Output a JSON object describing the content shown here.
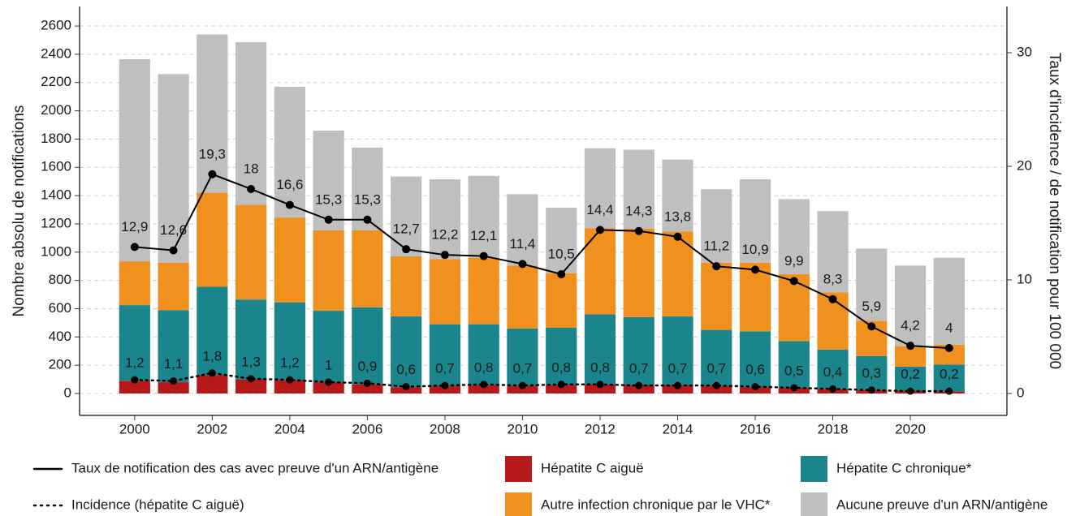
{
  "chart_data": {
    "type": "bar",
    "stacked": true,
    "ylabel": "Nombre absolu de notifications",
    "y2label": "Taux d'incidence / de notification pour 100 000",
    "x": [
      2000,
      2001,
      2002,
      2003,
      2004,
      2005,
      2006,
      2007,
      2008,
      2009,
      2010,
      2011,
      2012,
      2013,
      2014,
      2015,
      2016,
      2017,
      2018,
      2019,
      2020,
      2021
    ],
    "xlim": [
      1998.58,
      2022.49
    ],
    "xticks": [
      2000,
      2002,
      2004,
      2006,
      2008,
      2010,
      2012,
      2014,
      2016,
      2018,
      2020
    ],
    "ylim": [
      -155,
      2738
    ],
    "yticks": [
      0,
      200,
      400,
      600,
      800,
      1000,
      1200,
      1400,
      1600,
      1800,
      2000,
      2200,
      2400,
      2600
    ],
    "y2lim": [
      -1.93,
      34.07
    ],
    "y2ticks": [
      0,
      10,
      20,
      30
    ],
    "grid": true,
    "legend": "bottom",
    "series": [
      {
        "name": "Taux de notification des cas avec preuve d'un ARN/antigène",
        "type": "line",
        "linestyle": "solid",
        "color": "#000000",
        "axis": "y2",
        "values": [
          12.9,
          12.6,
          19.3,
          18,
          16.6,
          15.3,
          15.3,
          12.7,
          12.2,
          12.1,
          11.4,
          10.5,
          14.4,
          14.3,
          13.8,
          11.2,
          10.9,
          9.9,
          8.3,
          5.9,
          4.2,
          4
        ],
        "value_labels": [
          "12,9",
          "12,6",
          "19,3",
          "18",
          "16,6",
          "15,3",
          "15,3",
          "12,7",
          "12,2",
          "12,1",
          "11,4",
          "10,5",
          "14,4",
          "14,3",
          "13,8",
          "11,2",
          "10,9",
          "9,9",
          "8,3",
          "5,9",
          "4,2",
          "4"
        ]
      },
      {
        "name": "Hépatite C aiguë",
        "type": "bar",
        "color": "#b5191a",
        "values": [
          90,
          80,
          130,
          100,
          95,
          80,
          65,
          45,
          55,
          60,
          55,
          60,
          65,
          60,
          60,
          55,
          45,
          40,
          30,
          25,
          20,
          15
        ]
      },
      {
        "name": "Hépatite C chronique*",
        "type": "bar",
        "color": "#1a858d",
        "values": [
          535,
          510,
          625,
          565,
          550,
          505,
          545,
          500,
          435,
          430,
          405,
          405,
          495,
          480,
          485,
          395,
          395,
          330,
          280,
          240,
          170,
          190
        ]
      },
      {
        "name": "Incidence (hépatite C aiguë)",
        "type": "line",
        "linestyle": "dotted",
        "color": "#000000",
        "axis": "y2",
        "values": [
          1.2,
          1.1,
          1.8,
          1.3,
          1.2,
          1,
          0.9,
          0.6,
          0.7,
          0.8,
          0.7,
          0.8,
          0.8,
          0.7,
          0.7,
          0.7,
          0.6,
          0.5,
          0.4,
          0.3,
          0.2,
          0.2
        ],
        "value_labels": [
          "1,2",
          "1,1",
          "1,8",
          "1,3",
          "1,2",
          "1",
          "0,9",
          "0,6",
          "0,7",
          "0,8",
          "0,7",
          "0,8",
          "0,8",
          "0,7",
          "0,7",
          "0,7",
          "0,6",
          "0,5",
          "0,4",
          "0,3",
          "0,2",
          "0,2"
        ]
      },
      {
        "name": "Autre infection chronique par le VHC*",
        "type": "bar",
        "color": "#f0901f",
        "values": [
          310,
          335,
          665,
          670,
          600,
          570,
          545,
          425,
          460,
          470,
          445,
          385,
          610,
          625,
          600,
          475,
          485,
          475,
          405,
          250,
          145,
          140
        ]
      },
      {
        "name": "Aucune preuve d'un ARN/antigène",
        "type": "bar",
        "color": "#bfbfbf",
        "values": [
          1430,
          1335,
          1120,
          1150,
          925,
          705,
          585,
          565,
          565,
          580,
          505,
          465,
          565,
          560,
          510,
          520,
          590,
          530,
          575,
          510,
          570,
          615
        ]
      }
    ]
  }
}
